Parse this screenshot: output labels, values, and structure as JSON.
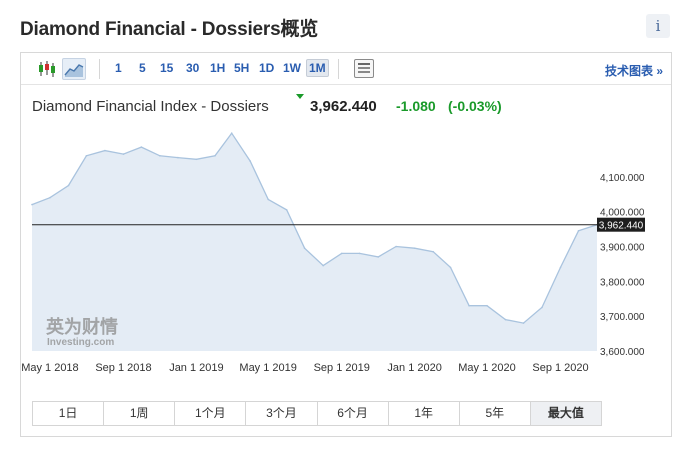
{
  "header": {
    "title": "Diamond Financial - Dossiers概览",
    "info_label": "i"
  },
  "toolbar": {
    "chart_type_icons": [
      "candlestick-icon",
      "area-chart-icon"
    ],
    "timeframes": [
      "1",
      "5",
      "15",
      "30",
      "1H",
      "5H",
      "1D",
      "1W",
      "1M"
    ],
    "active_timeframe": "1M",
    "table_icon": "table-icon",
    "tech_chart_link": "技术图表 »"
  },
  "quote": {
    "name": "Diamond Financial Index - Dossiers",
    "last": "3,962.440",
    "change": "-1.080",
    "change_pct": "(-0.03%)",
    "direction": "down"
  },
  "watermark": {
    "cn": "英为财情",
    "en": "Investing.com"
  },
  "range_buttons": [
    "1日",
    "1周",
    "1个月",
    "3个月",
    "6个月",
    "1年",
    "5年",
    "最大值"
  ],
  "active_range": "最大值",
  "colors": {
    "area_fill": "#e4ecf5",
    "area_line": "#a9c3de",
    "current_line": "#222222",
    "positive_green": "#1a9a2a",
    "link_blue": "#2a5db0"
  },
  "chart_data": {
    "type": "area",
    "title": "Diamond Financial Index - Dossiers",
    "x_ticks": [
      "May 1 2018",
      "Sep 1 2018",
      "Jan 1 2019",
      "May 1 2019",
      "Sep 1 2019",
      "Jan 1 2020",
      "May 1 2020",
      "Sep 1 2020"
    ],
    "x_dates": [
      "2018-04-01",
      "2018-05-01",
      "2018-06-01",
      "2018-07-01",
      "2018-08-01",
      "2018-09-01",
      "2018-10-01",
      "2018-11-01",
      "2018-12-01",
      "2019-01-01",
      "2019-02-01",
      "2019-03-01",
      "2019-04-01",
      "2019-05-01",
      "2019-06-01",
      "2019-07-01",
      "2019-08-01",
      "2019-09-01",
      "2019-10-01",
      "2019-11-01",
      "2019-12-01",
      "2020-01-01",
      "2020-02-01",
      "2020-03-01",
      "2020-04-01",
      "2020-05-01",
      "2020-06-01",
      "2020-07-01",
      "2020-08-01",
      "2020-09-01",
      "2020-10-01",
      "2020-11-01"
    ],
    "values": [
      4020,
      4040,
      4075,
      4160,
      4175,
      4165,
      4185,
      4160,
      4155,
      4150,
      4160,
      4225,
      4145,
      4035,
      4005,
      3895,
      3845,
      3880,
      3880,
      3870,
      3900,
      3895,
      3885,
      3840,
      3730,
      3730,
      3690,
      3680,
      3725,
      3840,
      3945,
      3962.44
    ],
    "y_ticks": [
      "4,100.000",
      "4,000.000",
      "3,900.000",
      "3,800.000",
      "3,700.000",
      "3,600.000"
    ],
    "y_tick_values": [
      4100,
      4000,
      3900,
      3800,
      3700,
      3600
    ],
    "ylim": [
      3600,
      4260
    ],
    "current_value": 3962.44,
    "current_label": "3,962.440",
    "grid": false
  }
}
